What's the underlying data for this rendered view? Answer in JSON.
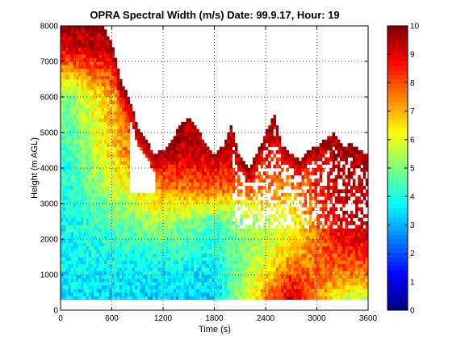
{
  "chart_data": {
    "type": "heatmap",
    "title": "OPRA Spectral Width (m/s)  Date: 99.9.17, Hour: 19",
    "xlabel": "Time (s)",
    "ylabel": "Height (m AGL)",
    "xlim": [
      0,
      3600
    ],
    "ylim": [
      0,
      8000
    ],
    "x_ticks": [
      0,
      600,
      1200,
      1800,
      2400,
      3000,
      3600
    ],
    "y_ticks": [
      0,
      1000,
      2000,
      3000,
      4000,
      5000,
      6000,
      7000,
      8000
    ],
    "grid": true,
    "data_min_height": 300,
    "colormap": "jet",
    "colorbar": {
      "range": [
        0,
        10
      ],
      "ticks": [
        0,
        1,
        2,
        3,
        4,
        5,
        6,
        7,
        8,
        9,
        10
      ]
    },
    "echo_top_profile": {
      "time": [
        0,
        200,
        400,
        500,
        600,
        700,
        800,
        900,
        1000,
        1100,
        1200,
        1300,
        1400,
        1500,
        1600,
        1700,
        1800,
        1900,
        2000,
        2100,
        2200,
        2300,
        2400,
        2500,
        2600,
        2700,
        2800,
        2900,
        3000,
        3100,
        3200,
        3300,
        3400,
        3500,
        3600
      ],
      "height": [
        8000,
        8000,
        8000,
        8000,
        7500,
        6500,
        6000,
        5200,
        4800,
        4400,
        4500,
        4800,
        5200,
        5400,
        5100,
        4700,
        4400,
        4600,
        5200,
        4300,
        4000,
        4400,
        5000,
        5500,
        4600,
        4400,
        4200,
        4500,
        4600,
        4800,
        5000,
        4600,
        4700,
        4500,
        4400
      ]
    },
    "spectral_width_profiles": [
      {
        "time": 100,
        "height": [
          300,
          2000,
          4000,
          6000,
          7500
        ],
        "value": [
          3.5,
          3.8,
          4.2,
          5.0,
          9.5
        ]
      },
      {
        "time": 1200,
        "height": [
          300,
          1500,
          2500,
          3500,
          4500
        ],
        "value": [
          3.2,
          4.0,
          5.5,
          7.5,
          9.5
        ]
      },
      {
        "time": 1800,
        "height": [
          300,
          1500,
          2500,
          3500,
          4500
        ],
        "value": [
          3.2,
          3.8,
          4.5,
          8.0,
          9.5
        ]
      },
      {
        "time": 2700,
        "height": [
          300,
          800,
          1500,
          2500,
          4500
        ],
        "value": [
          9.5,
          8.5,
          7.0,
          6.0,
          9.0
        ]
      },
      {
        "time": 3300,
        "height": [
          300,
          1000,
          2000,
          3000,
          4500
        ],
        "value": [
          5.5,
          7.5,
          9.0,
          9.5,
          9.5
        ]
      }
    ]
  }
}
